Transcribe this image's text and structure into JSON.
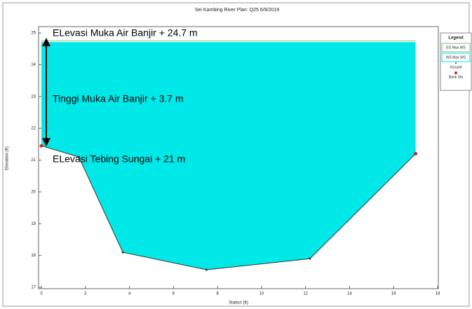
{
  "chart_data": {
    "type": "cross_section",
    "title": "Sei Kambing River     Plan: Q25    6/9/2019",
    "x_label": "Station (ft)",
    "y_label": "Elevation (ft)",
    "xlim": [
      0,
      18
    ],
    "ylim": [
      17,
      25
    ],
    "xticks": [
      0,
      2,
      4,
      6,
      8,
      10,
      12,
      14,
      16,
      18
    ],
    "yticks": [
      17,
      18,
      19,
      20,
      21,
      22,
      23,
      24,
      25
    ],
    "legend_title": "Legend",
    "series": [
      {
        "name": "EG Max WS",
        "color": "#7fbf7f",
        "x": [
          0,
          17
        ],
        "values": [
          24.75,
          24.75
        ]
      },
      {
        "name": "WS Max WS",
        "color": "#00e8e8",
        "x": [
          0,
          17
        ],
        "values": [
          24.7,
          24.7
        ]
      },
      {
        "name": "Ground",
        "color": "#333333",
        "x": [
          0,
          1.7,
          3.7,
          7.5,
          12.2,
          17
        ],
        "values": [
          21.45,
          21.1,
          18.1,
          17.55,
          17.9,
          21.2
        ]
      },
      {
        "name": "Bank Sta",
        "color": "#e02020",
        "x": [
          0,
          17
        ],
        "values": [
          21.45,
          21.2
        ]
      }
    ],
    "annotations": [
      "ELevasi Muka Air Banjir + 24.7 m",
      "Tinggi Muka Air Banjir + 3.7 m",
      "ELevasi Tebing Sungai + 21 m"
    ]
  }
}
